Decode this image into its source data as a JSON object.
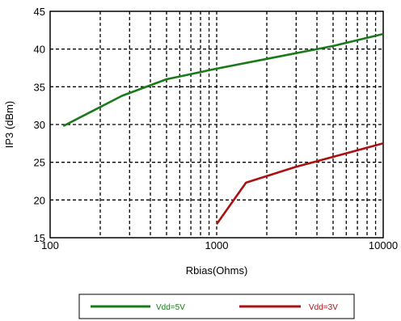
{
  "chart_data": {
    "type": "line",
    "title": "",
    "xlabel": "Rbias(Ohms)",
    "ylabel": "IP3 (dBm)",
    "x_scale": "log",
    "xlim": [
      100,
      10000
    ],
    "ylim": [
      15,
      45
    ],
    "x_ticks": [
      100,
      1000,
      10000
    ],
    "x_tick_labels": [
      "100",
      "1000",
      "10000"
    ],
    "y_ticks": [
      15,
      20,
      25,
      30,
      35,
      40,
      45
    ],
    "y_tick_labels": [
      "15",
      "20",
      "25",
      "30",
      "35",
      "40",
      "45"
    ],
    "grid": true,
    "grid_style": "dashed",
    "legend_position": "bottom",
    "series": [
      {
        "name": "Vdd=5V",
        "color": "#1a7a1a",
        "x": [
          120,
          180,
          270,
          500,
          1000,
          2000,
          5000,
          10000
        ],
        "y": [
          29.8,
          31.8,
          33.8,
          36.0,
          37.4,
          38.7,
          40.4,
          42.0
        ]
      },
      {
        "name": "Vdd=3V",
        "color": "#aa1111",
        "x": [
          1000,
          1500,
          3000,
          10000
        ],
        "y": [
          16.8,
          22.3,
          24.4,
          27.5
        ]
      }
    ]
  }
}
